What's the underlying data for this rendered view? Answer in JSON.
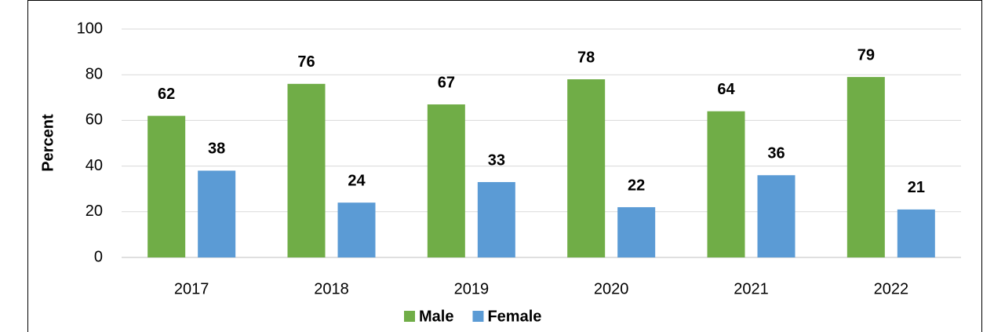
{
  "chart_data": {
    "type": "bar",
    "y_label": "Percent",
    "categories": [
      "2017",
      "2018",
      "2019",
      "2020",
      "2021",
      "2022"
    ],
    "series": [
      {
        "name": "Male",
        "color": "#70ad47",
        "values": [
          62,
          76,
          67,
          78,
          64,
          79
        ]
      },
      {
        "name": "Female",
        "color": "#5b9bd5",
        "values": [
          38,
          24,
          33,
          22,
          36,
          21
        ]
      }
    ],
    "ylim": [
      0,
      100
    ],
    "yticks": [
      0,
      20,
      40,
      60,
      80,
      100
    ],
    "grid": true,
    "legend": "bottom"
  }
}
